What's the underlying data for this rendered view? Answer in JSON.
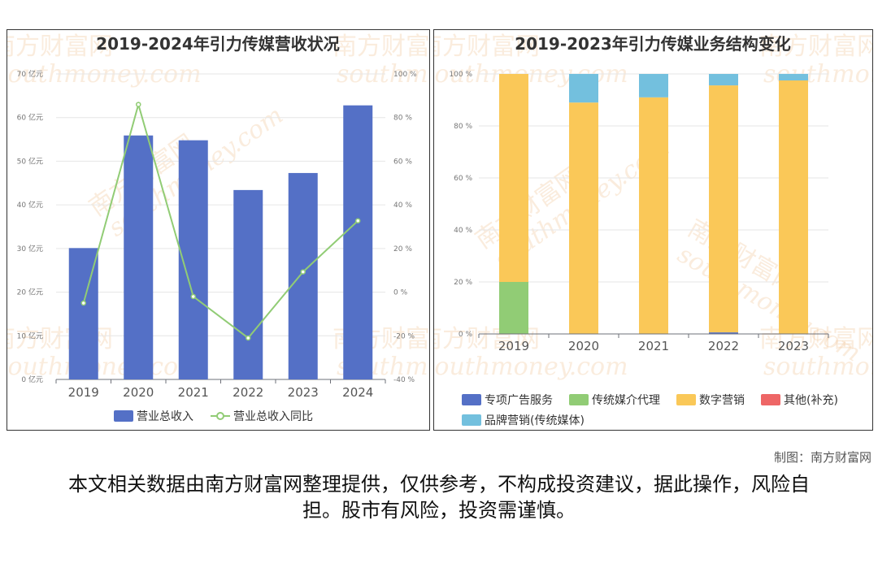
{
  "credit": "制图：南方财富网",
  "disclaimer": "本文相关数据由南方财富网整理提供，仅供参考，不构成投资建议，据此操作，风险自担。股市有风险，投资需谨慎。",
  "watermark": {
    "cn": "南方财富网",
    "en": "southmoney.com"
  },
  "chart_data": [
    {
      "type": "bar",
      "title": "2019-2024年引力传媒营收状况",
      "categories": [
        "2019",
        "2020",
        "2021",
        "2022",
        "2023",
        "2024"
      ],
      "y_ticks_left": [
        "0 亿元",
        "10 亿元",
        "20 亿元",
        "30 亿元",
        "40 亿元",
        "50 亿元",
        "60 亿元",
        "70 亿元"
      ],
      "y_ticks_right": [
        "-40 %",
        "-20 %",
        "0 %",
        "20 %",
        "40 %",
        "60 %",
        "80 %",
        "100 %"
      ],
      "ylim_left": [
        0,
        70
      ],
      "ylim_right": [
        -40,
        100
      ],
      "series": [
        {
          "name": "营业总收入",
          "kind": "bar",
          "axis": "left",
          "color": "#5470c6",
          "values": [
            30.1,
            55.9,
            54.8,
            43.4,
            47.3,
            62.8
          ]
        },
        {
          "name": "营业总收入同比",
          "kind": "line",
          "axis": "right",
          "color": "#91cc75",
          "values": [
            -5,
            86,
            -2,
            -21,
            9.3,
            32.7
          ]
        }
      ],
      "legend_position": "bottom",
      "grid": true
    },
    {
      "type": "bar",
      "stacked": true,
      "title": "2019-2023年引力传媒业务结构变化",
      "categories": [
        "2019",
        "2020",
        "2021",
        "2022",
        "2023"
      ],
      "y_ticks": [
        "0 %",
        "20 %",
        "40 %",
        "60 %",
        "80 %",
        "100 %"
      ],
      "ylim": [
        0,
        100
      ],
      "series": [
        {
          "name": "专项广告服务",
          "color": "#5470c6",
          "values": [
            0,
            0,
            0,
            0.6,
            0
          ]
        },
        {
          "name": "传统媒介代理",
          "color": "#91cc75",
          "values": [
            20,
            0,
            0,
            0,
            0
          ]
        },
        {
          "name": "数字营销",
          "color": "#fac858",
          "values": [
            80,
            89,
            91,
            95,
            97.5
          ]
        },
        {
          "name": "其他(补充)",
          "color": "#ee6666",
          "values": [
            0,
            0,
            0,
            0,
            0
          ]
        },
        {
          "name": "品牌营销(传统媒体)",
          "color": "#73c0de",
          "values": [
            0,
            11,
            9,
            4.4,
            2.5
          ]
        }
      ],
      "legend_position": "bottom",
      "grid": true
    }
  ]
}
